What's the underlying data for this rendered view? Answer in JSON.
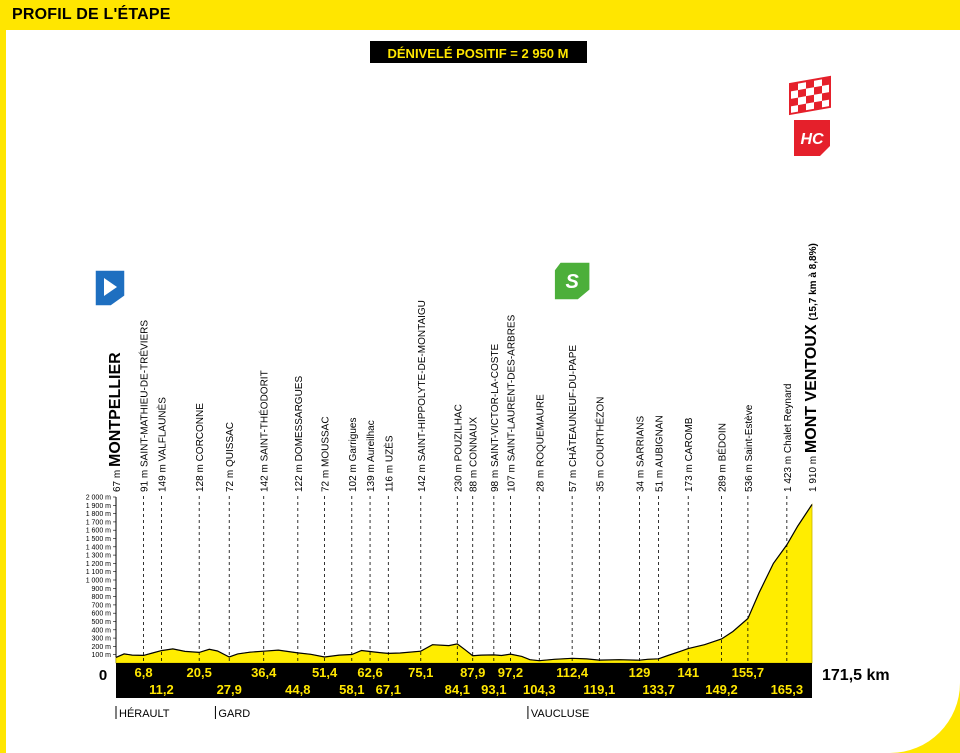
{
  "header": {
    "title": "PROFIL DE L'ÉTAPE"
  },
  "colors": {
    "header_bg": "#ffe600",
    "profile_fill": "#ffed00",
    "strip": "#000000",
    "tick_text": "#ffe600",
    "start_icon": "#1e6fc0",
    "sprint_icon": "#4caf3a",
    "hc_icon": "#e5202b"
  },
  "icons": {
    "start": "start-flag-icon",
    "sprint": "sprint-s-icon",
    "finish": "checkered-finish-icon",
    "climb": "hc-climb-icon"
  },
  "chart_data": {
    "type": "area",
    "title": "DÉNIVELÉ POSITIF = 2 950 M",
    "xlim": [
      0,
      171.5
    ],
    "ylim": [
      0,
      2000
    ],
    "x_unit": "km",
    "y_ticks": [
      "100 m",
      "200 m",
      "300 m",
      "400 m",
      "500 m",
      "600 m",
      "700 m",
      "800 m",
      "900 m",
      "1 000 m",
      "1 100 m",
      "1 200 m",
      "1 300 m",
      "1 400 m",
      "1 500 m",
      "1 600 m",
      "1 700 m",
      "1 800 m",
      "1 900 m",
      "2 000 m"
    ],
    "y_tick_values": [
      100,
      200,
      300,
      400,
      500,
      600,
      700,
      800,
      900,
      1000,
      1100,
      1200,
      1300,
      1400,
      1500,
      1600,
      1700,
      1800,
      1900,
      2000
    ],
    "x_start_label": "0",
    "x_end_label": "171,5 km",
    "profile": [
      [
        0,
        67
      ],
      [
        2,
        110
      ],
      [
        4,
        95
      ],
      [
        6.8,
        91
      ],
      [
        9,
        120
      ],
      [
        11.2,
        149
      ],
      [
        14,
        170
      ],
      [
        17,
        140
      ],
      [
        20.5,
        128
      ],
      [
        23,
        165
      ],
      [
        25,
        145
      ],
      [
        27.9,
        72
      ],
      [
        30,
        110
      ],
      [
        33,
        130
      ],
      [
        36.4,
        142
      ],
      [
        40,
        155
      ],
      [
        44.8,
        122
      ],
      [
        48,
        105
      ],
      [
        51.4,
        72
      ],
      [
        55,
        95
      ],
      [
        58.1,
        102
      ],
      [
        60.5,
        150
      ],
      [
        62.6,
        139
      ],
      [
        65,
        125
      ],
      [
        67.1,
        116
      ],
      [
        70,
        120
      ],
      [
        75.1,
        142
      ],
      [
        78,
        220
      ],
      [
        82,
        210
      ],
      [
        84.1,
        230
      ],
      [
        86,
        160
      ],
      [
        87.9,
        88
      ],
      [
        90,
        95
      ],
      [
        93.1,
        98
      ],
      [
        95,
        90
      ],
      [
        97.2,
        107
      ],
      [
        100,
        80
      ],
      [
        102,
        40
      ],
      [
        104.3,
        28
      ],
      [
        108,
        45
      ],
      [
        112.4,
        57
      ],
      [
        116,
        50
      ],
      [
        119.1,
        35
      ],
      [
        124,
        40
      ],
      [
        129,
        34
      ],
      [
        131,
        45
      ],
      [
        133.7,
        51
      ],
      [
        136,
        90
      ],
      [
        139,
        140
      ],
      [
        141,
        173
      ],
      [
        145,
        220
      ],
      [
        149.2,
        289
      ],
      [
        152,
        380
      ],
      [
        155.7,
        536
      ],
      [
        158.5,
        850
      ],
      [
        162,
        1200
      ],
      [
        165.3,
        1423
      ],
      [
        168,
        1650
      ],
      [
        171.5,
        1910
      ]
    ],
    "points": [
      {
        "km": "0",
        "name": "MONTPELLIER",
        "alt": "67 m",
        "major": true,
        "icon": "start"
      },
      {
        "km": "6,8",
        "name": "SAINT-MATHIEU-DE-TRÉVIERS",
        "alt": "91 m"
      },
      {
        "km": "11,2",
        "name": "VALFLAUNÈS",
        "alt": "149 m"
      },
      {
        "km": "20,5",
        "name": "CORCONNE",
        "alt": "128 m"
      },
      {
        "km": "27,9",
        "name": "QUISSAC",
        "alt": "72 m"
      },
      {
        "km": "36,4",
        "name": "SAINT-THÉODORIT",
        "alt": "142 m"
      },
      {
        "km": "44,8",
        "name": "DOMESSARGUES",
        "alt": "122 m"
      },
      {
        "km": "51,4",
        "name": "MOUSSAC",
        "alt": "72 m"
      },
      {
        "km": "58,1",
        "name": "Garrigues",
        "alt": "102 m"
      },
      {
        "km": "62,6",
        "name": "Aureilhac",
        "alt": "139 m"
      },
      {
        "km": "67,1",
        "name": "UZÈS",
        "alt": "116 m"
      },
      {
        "km": "75,1",
        "name": "SAINT-HIPPOLYTE-DE-MONTAIGU",
        "alt": "142 m"
      },
      {
        "km": "84,1",
        "name": "POUZILHAC",
        "alt": "230 m"
      },
      {
        "km": "87,9",
        "name": "CONNAUX",
        "alt": "88 m"
      },
      {
        "km": "93,1",
        "name": "SAINT-VICTOR-LA-COSTE",
        "alt": "98 m"
      },
      {
        "km": "97,2",
        "name": "SAINT-LAURENT-DES-ARBRES",
        "alt": "107 m"
      },
      {
        "km": "104,3",
        "name": "ROQUEMAURE",
        "alt": "28 m"
      },
      {
        "km": "112,4",
        "name": "CHÂTEAUNEUF-DU-PAPE",
        "alt": "57 m",
        "icon": "sprint"
      },
      {
        "km": "119,1",
        "name": "COURTHÉZON",
        "alt": "35 m"
      },
      {
        "km": "129",
        "name": "SARRIANS",
        "alt": "34 m"
      },
      {
        "km": "133,7",
        "name": "AUBIGNAN",
        "alt": "51 m"
      },
      {
        "km": "141",
        "name": "CAROMB",
        "alt": "173 m"
      },
      {
        "km": "149,2",
        "name": "BÉDOIN",
        "alt": "289 m"
      },
      {
        "km": "155,7",
        "name": "Saint-Estève",
        "alt": "536 m"
      },
      {
        "km": "165,3",
        "name": "Chalet Reynard",
        "alt": "1 423 m"
      },
      {
        "km": "171,5",
        "name": "MONT VENTOUX",
        "alt": "1 910 m",
        "major": true,
        "note": "(15,7 km à 8,8%)",
        "icon": "finish"
      }
    ],
    "climb_category": "HC",
    "regions": [
      {
        "name": "HÉRAULT",
        "from_km": 0
      },
      {
        "name": "GARD",
        "from_km": 24.5
      },
      {
        "name": "VAUCLUSE",
        "from_km": 101.5
      }
    ]
  }
}
